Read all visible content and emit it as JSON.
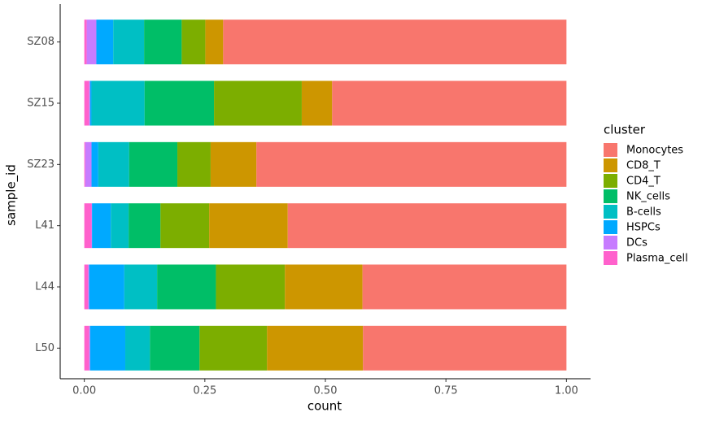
{
  "chart_data": {
    "type": "stacked_barh",
    "x_label": "count",
    "y_label": "sample_id",
    "legend_title": "cluster",
    "categories": [
      "SZ08",
      "SZ15",
      "SZ23",
      "L41",
      "L44",
      "L50"
    ],
    "series": [
      {
        "name": "Plasma_cell",
        "color": "#FF61CC",
        "values": [
          0.005,
          0.01,
          0.002,
          0.015,
          0.008,
          0.01
        ]
      },
      {
        "name": "DCs",
        "color": "#C77CFF",
        "values": [
          0.02,
          0.002,
          0.013,
          0.001,
          0.002,
          0.002
        ]
      },
      {
        "name": "HSPCs",
        "color": "#00A9FF",
        "values": [
          0.035,
          0.003,
          0.014,
          0.039,
          0.073,
          0.073
        ]
      },
      {
        "name": "B-cells",
        "color": "#00BFC4",
        "values": [
          0.064,
          0.11,
          0.064,
          0.037,
          0.068,
          0.051
        ]
      },
      {
        "name": "NK_cells",
        "color": "#00BE67",
        "values": [
          0.078,
          0.144,
          0.1,
          0.066,
          0.122,
          0.103
        ]
      },
      {
        "name": "CD4_T",
        "color": "#7CAE00",
        "values": [
          0.049,
          0.182,
          0.069,
          0.101,
          0.143,
          0.14
        ]
      },
      {
        "name": "CD8_T",
        "color": "#CD9600",
        "values": [
          0.037,
          0.063,
          0.095,
          0.163,
          0.161,
          0.199
        ]
      },
      {
        "name": "Monocytes",
        "color": "#F8766D",
        "values": [
          0.712,
          0.486,
          0.643,
          0.578,
          0.423,
          0.422
        ]
      }
    ],
    "xlim": [
      -0.05,
      1.05
    ],
    "xticks": [
      {
        "value": 0,
        "label": "0.00"
      },
      {
        "value": 0.25,
        "label": "0.25"
      },
      {
        "value": 0.5,
        "label": "0.50"
      },
      {
        "value": 0.75,
        "label": "0.75"
      },
      {
        "value": 1,
        "label": "1.00"
      }
    ],
    "legend_position": "right",
    "grid": false
  }
}
